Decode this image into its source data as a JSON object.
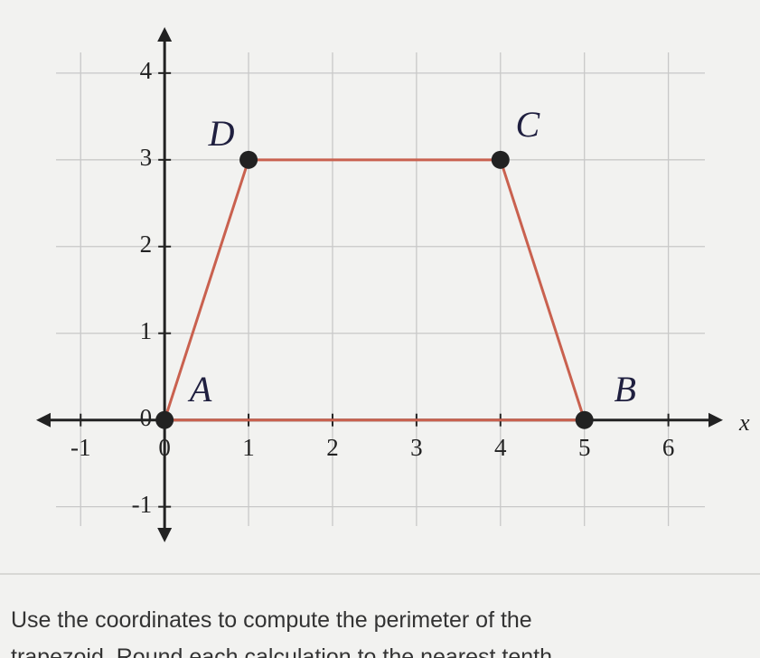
{
  "chart_data": {
    "type": "polygon",
    "x_label": "x",
    "xlim": [
      -1.53,
      6.65
    ],
    "ylim": [
      -1.41,
      4.53
    ],
    "xticks": [
      -1,
      0,
      1,
      2,
      3,
      4,
      5,
      6
    ],
    "yticks": [
      -1,
      0,
      1,
      2,
      3,
      4
    ],
    "grid": true,
    "color": "#c9614f",
    "points": [
      {
        "label": "A",
        "x": 0,
        "y": 0
      },
      {
        "label": "B",
        "x": 5,
        "y": 0
      },
      {
        "label": "C",
        "x": 4,
        "y": 3
      },
      {
        "label": "D",
        "x": 1,
        "y": 3
      }
    ]
  },
  "question": [
    "Use the coordinates to compute the perimeter of the",
    "trapezoid. Round each calculation to the nearest tenth"
  ]
}
